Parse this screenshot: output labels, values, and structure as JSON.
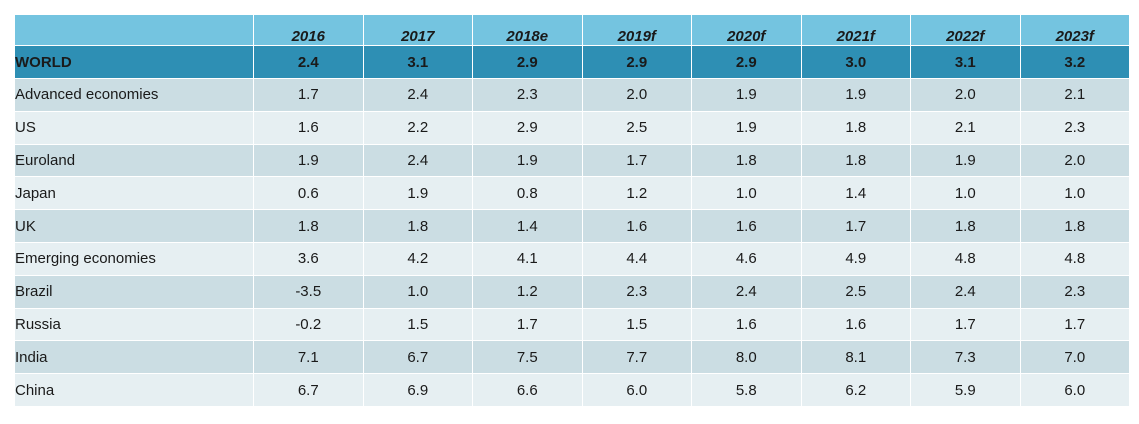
{
  "chart_data": {
    "type": "table",
    "columns": [
      "",
      "2016",
      "2017",
      "2018e",
      "2019f",
      "2020f",
      "2021f",
      "2022f",
      "2023f"
    ],
    "rows": [
      {
        "label": "WORLD",
        "level": "world",
        "values": [
          "2.4",
          "3.1",
          "2.9",
          "2.9",
          "2.9",
          "3.0",
          "3.1",
          "3.2"
        ]
      },
      {
        "label": "Advanced economies",
        "level": 0,
        "values": [
          "1.7",
          "2.4",
          "2.3",
          "2.0",
          "1.9",
          "1.9",
          "2.0",
          "2.1"
        ]
      },
      {
        "label": "US",
        "level": 1,
        "values": [
          "1.6",
          "2.2",
          "2.9",
          "2.5",
          "1.9",
          "1.8",
          "2.1",
          "2.3"
        ]
      },
      {
        "label": "Euroland",
        "level": 1,
        "values": [
          "1.9",
          "2.4",
          "1.9",
          "1.7",
          "1.8",
          "1.8",
          "1.9",
          "2.0"
        ]
      },
      {
        "label": "Japan",
        "level": 1,
        "values": [
          "0.6",
          "1.9",
          "0.8",
          "1.2",
          "1.0",
          "1.4",
          "1.0",
          "1.0"
        ]
      },
      {
        "label": "UK",
        "level": 1,
        "values": [
          "1.8",
          "1.8",
          "1.4",
          "1.6",
          "1.6",
          "1.7",
          "1.8",
          "1.8"
        ]
      },
      {
        "label": "Emerging economies",
        "level": 0,
        "values": [
          "3.6",
          "4.2",
          "4.1",
          "4.4",
          "4.6",
          "4.9",
          "4.8",
          "4.8"
        ]
      },
      {
        "label": "Brazil",
        "level": 1,
        "values": [
          "-3.5",
          "1.0",
          "1.2",
          "2.3",
          "2.4",
          "2.5",
          "2.4",
          "2.3"
        ]
      },
      {
        "label": "Russia",
        "level": 1,
        "values": [
          "-0.2",
          "1.5",
          "1.7",
          "1.5",
          "1.6",
          "1.6",
          "1.7",
          "1.7"
        ]
      },
      {
        "label": "India",
        "level": 1,
        "values": [
          "7.1",
          "6.7",
          "7.5",
          "7.7",
          "8.0",
          "8.1",
          "7.3",
          "7.0"
        ]
      },
      {
        "label": "China",
        "level": 1,
        "values": [
          "6.7",
          "6.9",
          "6.6",
          "6.0",
          "5.8",
          "6.2",
          "5.9",
          "6.0"
        ]
      }
    ]
  },
  "colors": {
    "header": "#74c4e0",
    "world_row": "#2e8fb4",
    "row_dark": "#cbdde3",
    "row_light": "#e6eff2"
  }
}
